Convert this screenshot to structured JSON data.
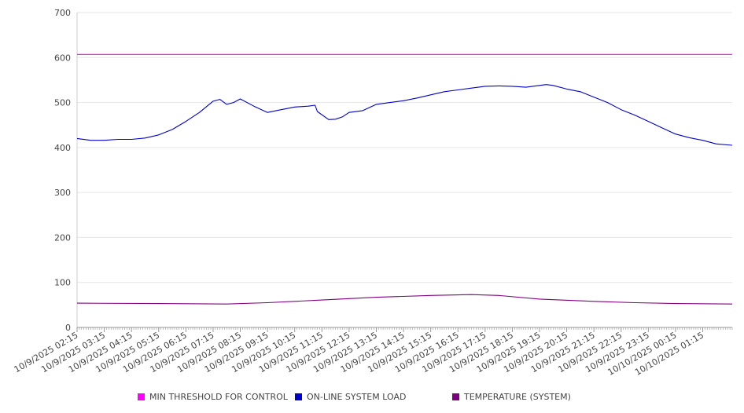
{
  "chart_data": {
    "type": "line",
    "y_ticks": [
      0,
      100,
      200,
      300,
      400,
      500,
      600,
      700
    ],
    "ylim": [
      0,
      700
    ],
    "x_ticks": [
      "10/9/2025 02:15",
      "10/9/2025 03:15",
      "10/9/2025 04:15",
      "10/9/2025 05:15",
      "10/9/2025 06:15",
      "10/9/2025 07:15",
      "10/9/2025 08:15",
      "10/9/2025 09:15",
      "10/9/2025 10:15",
      "10/9/2025 11:15",
      "10/9/2025 12:15",
      "10/9/2025 13:15",
      "10/9/2025 14:15",
      "10/9/2025 15:15",
      "10/9/2025 16:15",
      "10/9/2025 17:15",
      "10/9/2025 18:15",
      "10/9/2025 19:15",
      "10/9/2025 20:15",
      "10/9/2025 21:15",
      "10/9/2025 22:15",
      "10/9/2025 23:15",
      "10/10/2025 00:15",
      "10/10/2025 01:15"
    ],
    "x_range": [
      "10/9/2025 02:15",
      "10/10/2025 02:20"
    ],
    "grid": true,
    "legend_position": "bottom",
    "series": [
      {
        "name": "MIN THRESHOLD FOR CONTROL",
        "color": "#ff00ff",
        "points": [
          [
            "10/9/2025 02:15",
            607
          ],
          [
            "10/10/2025 02:20",
            607
          ]
        ]
      },
      {
        "name": "ON-LINE SYSTEM LOAD",
        "color": "#0000cc",
        "points": [
          [
            "10/9/2025 02:15",
            420
          ],
          [
            "10/9/2025 02:45",
            416
          ],
          [
            "10/9/2025 03:15",
            416
          ],
          [
            "10/9/2025 03:45",
            418
          ],
          [
            "10/9/2025 04:15",
            418
          ],
          [
            "10/9/2025 04:45",
            421
          ],
          [
            "10/9/2025 05:15",
            428
          ],
          [
            "10/9/2025 05:45",
            440
          ],
          [
            "10/9/2025 06:15",
            458
          ],
          [
            "10/9/2025 06:45",
            478
          ],
          [
            "10/9/2025 07:15",
            503
          ],
          [
            "10/9/2025 07:30",
            507
          ],
          [
            "10/9/2025 07:45",
            496
          ],
          [
            "10/9/2025 08:00",
            500
          ],
          [
            "10/9/2025 08:15",
            508
          ],
          [
            "10/9/2025 08:45",
            492
          ],
          [
            "10/9/2025 09:15",
            478
          ],
          [
            "10/9/2025 09:45",
            484
          ],
          [
            "10/9/2025 10:15",
            490
          ],
          [
            "10/9/2025 10:45",
            492
          ],
          [
            "10/9/2025 11:00",
            494
          ],
          [
            "10/9/2025 11:05",
            480
          ],
          [
            "10/9/2025 11:30",
            462
          ],
          [
            "10/9/2025 11:45",
            463
          ],
          [
            "10/9/2025 12:00",
            468
          ],
          [
            "10/9/2025 12:15",
            478
          ],
          [
            "10/9/2025 12:45",
            482
          ],
          [
            "10/9/2025 13:15",
            496
          ],
          [
            "10/9/2025 13:45",
            500
          ],
          [
            "10/9/2025 14:15",
            504
          ],
          [
            "10/9/2025 14:45",
            510
          ],
          [
            "10/9/2025 15:15",
            517
          ],
          [
            "10/9/2025 15:45",
            524
          ],
          [
            "10/9/2025 16:15",
            528
          ],
          [
            "10/9/2025 16:45",
            532
          ],
          [
            "10/9/2025 17:15",
            536
          ],
          [
            "10/9/2025 17:45",
            537
          ],
          [
            "10/9/2025 18:15",
            536
          ],
          [
            "10/9/2025 18:45",
            534
          ],
          [
            "10/9/2025 19:15",
            538
          ],
          [
            "10/9/2025 19:30",
            540
          ],
          [
            "10/9/2025 19:45",
            538
          ],
          [
            "10/9/2025 20:15",
            530
          ],
          [
            "10/9/2025 20:45",
            524
          ],
          [
            "10/9/2025 21:15",
            512
          ],
          [
            "10/9/2025 21:45",
            500
          ],
          [
            "10/9/2025 22:15",
            484
          ],
          [
            "10/9/2025 22:45",
            472
          ],
          [
            "10/9/2025 23:15",
            458
          ],
          [
            "10/9/2025 23:45",
            444
          ],
          [
            "10/10/2025 00:15",
            430
          ],
          [
            "10/10/2025 00:45",
            422
          ],
          [
            "10/10/2025 01:15",
            416
          ],
          [
            "10/10/2025 01:45",
            408
          ],
          [
            "10/10/2025 02:20",
            405
          ]
        ]
      },
      {
        "name": "TEMPERATURE (SYSTEM)",
        "color": "#800080",
        "points": [
          [
            "10/9/2025 02:15",
            54
          ],
          [
            "10/9/2025 05:15",
            53
          ],
          [
            "10/9/2025 07:45",
            52
          ],
          [
            "10/9/2025 09:15",
            55
          ],
          [
            "10/9/2025 11:15",
            61
          ],
          [
            "10/9/2025 13:15",
            67
          ],
          [
            "10/9/2025 15:15",
            71
          ],
          [
            "10/9/2025 16:45",
            73
          ],
          [
            "10/9/2025 17:45",
            71
          ],
          [
            "10/9/2025 19:15",
            63
          ],
          [
            "10/9/2025 21:15",
            58
          ],
          [
            "10/9/2025 22:45",
            55
          ],
          [
            "10/10/2025 00:15",
            53
          ],
          [
            "10/10/2025 02:20",
            52
          ]
        ]
      }
    ]
  }
}
